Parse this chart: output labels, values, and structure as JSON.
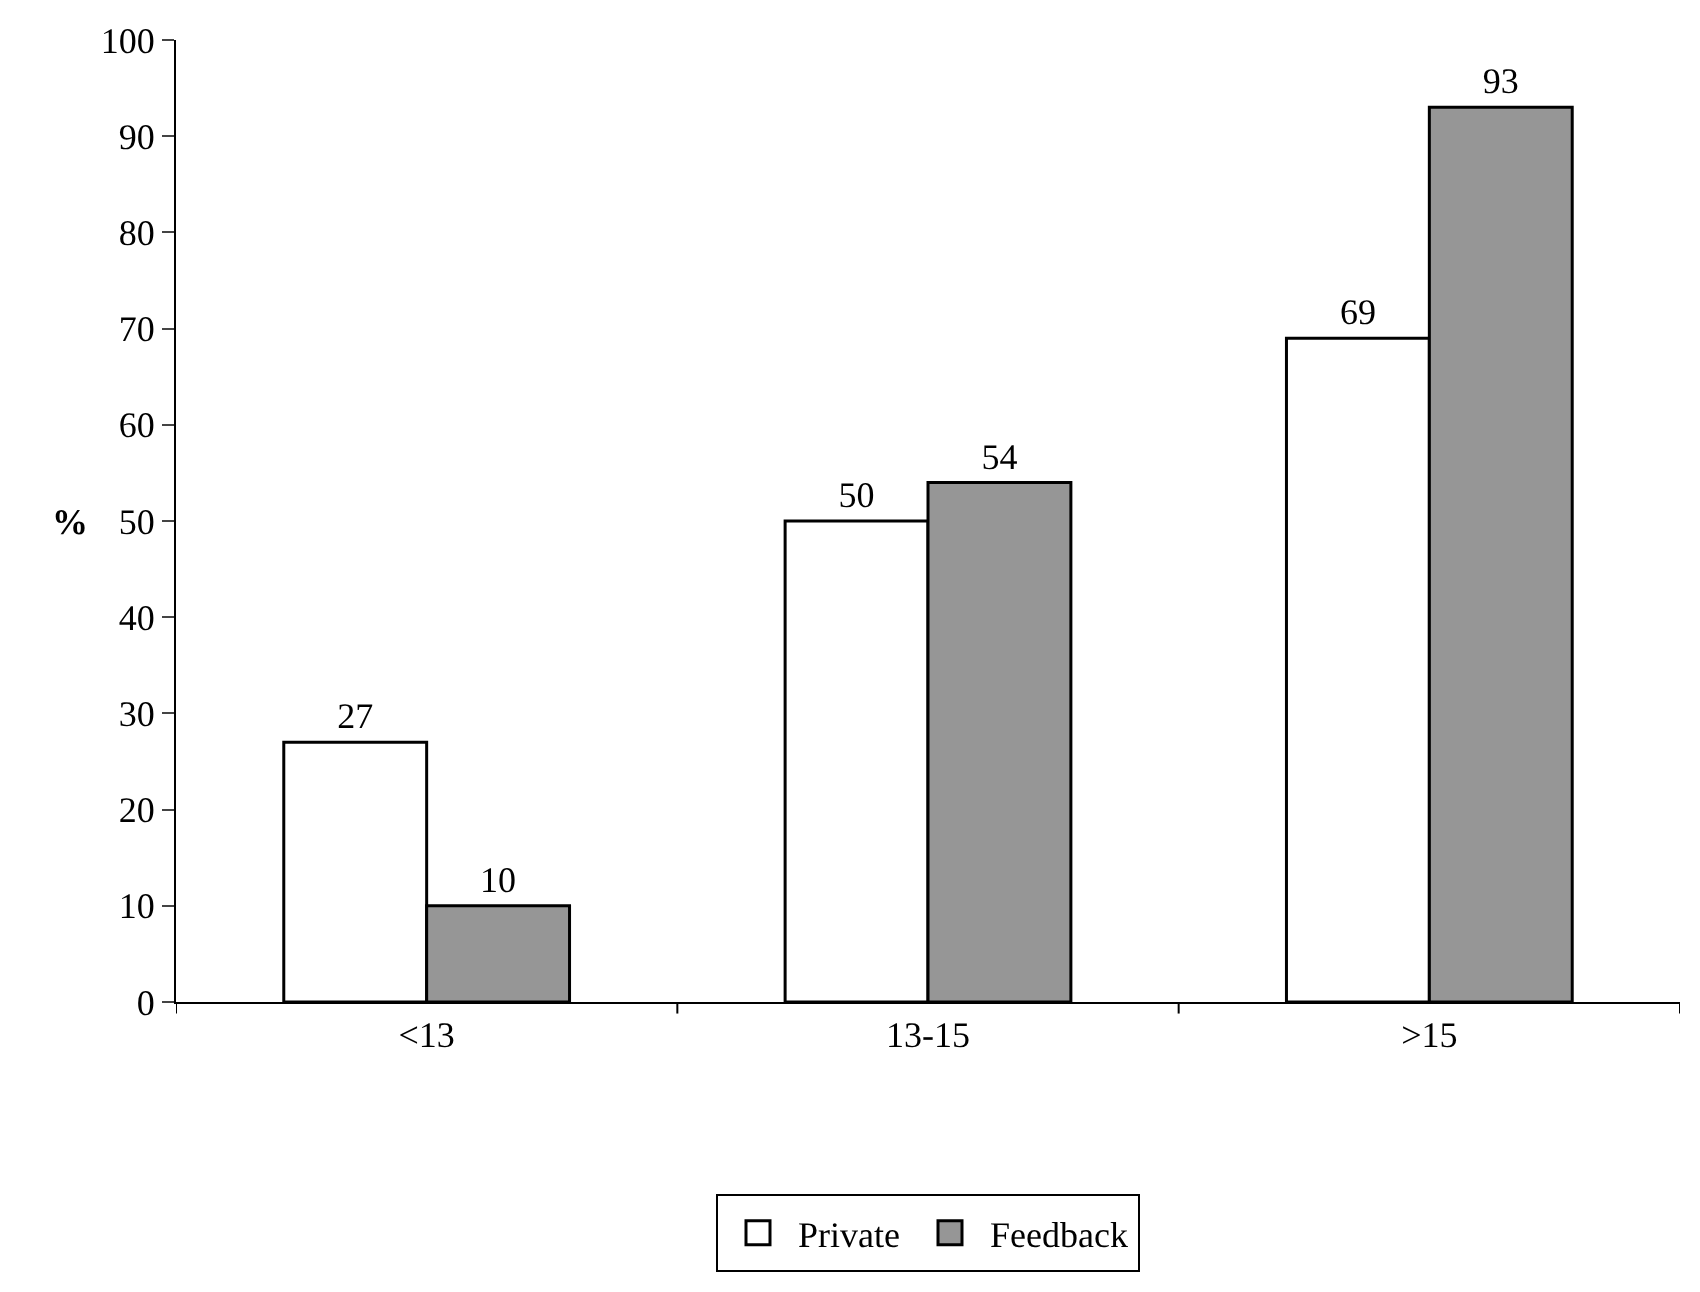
{
  "chart_data": {
    "type": "bar",
    "ylabel": "%",
    "categories": [
      "<13",
      "13-15",
      ">15"
    ],
    "series": [
      {
        "name": "Private",
        "color": "#ffffff",
        "values": [
          27,
          50,
          69
        ]
      },
      {
        "name": "Feedback",
        "color": "#969696",
        "values": [
          10,
          54,
          93
        ]
      }
    ],
    "ylim": [
      0,
      100
    ],
    "yticks": [
      0,
      10,
      20,
      30,
      40,
      50,
      60,
      70,
      80,
      90,
      100
    ],
    "grid": false,
    "legend": "bottom",
    "data_labels": true
  }
}
